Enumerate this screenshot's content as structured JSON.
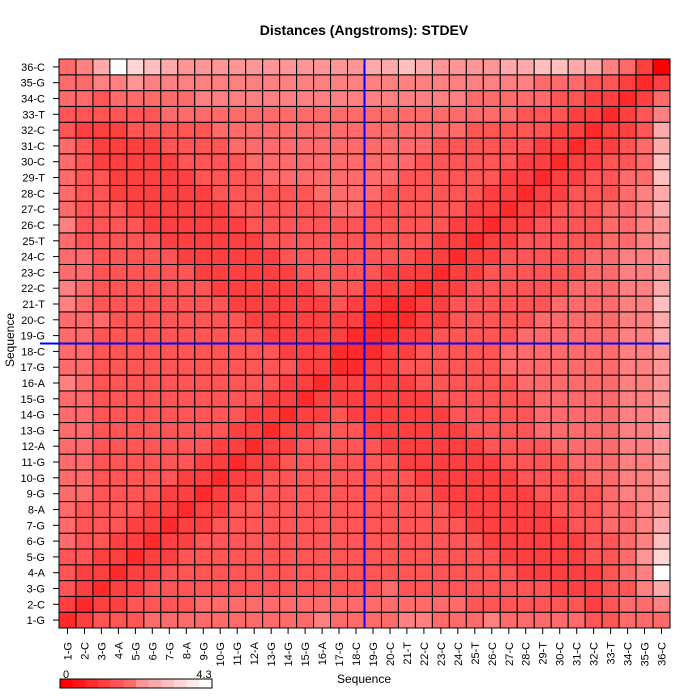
{
  "chart_data": {
    "type": "heatmap",
    "title": "Distances (Angstroms):  STDEV",
    "xlabel": "Sequence",
    "ylabel": "Sequence",
    "labels": [
      "1-G",
      "2-C",
      "3-G",
      "4-A",
      "5-G",
      "6-G",
      "7-G",
      "8-A",
      "9-G",
      "10-G",
      "11-G",
      "12-A",
      "13-G",
      "14-G",
      "15-G",
      "16-A",
      "17-G",
      "18-C",
      "19-G",
      "20-C",
      "21-T",
      "22-C",
      "23-C",
      "24-C",
      "25-T",
      "26-C",
      "27-C",
      "28-C",
      "29-T",
      "30-C",
      "31-C",
      "32-C",
      "33-T",
      "34-C",
      "35-G",
      "36-C"
    ],
    "colorbar": {
      "min": 0,
      "max": 4.3,
      "min_label": "0",
      "max_label": "4.3"
    },
    "value_encoding": "stdev in angstroms; low = saturated red, high = white",
    "crosshair": {
      "x_between": [
        "18-C",
        "19-G"
      ],
      "y_between": [
        "18-C",
        "19-G"
      ],
      "color": "#0000ff"
    },
    "grid": true,
    "colors": {
      "low": "#ff0000",
      "high": "#ffffff",
      "grid": "#000000",
      "crosshair": "#0000ff"
    },
    "values": [
      [
        0.6,
        1.2,
        1.5,
        1.5,
        1.6,
        1.7,
        1.8,
        1.8,
        1.8,
        1.9,
        1.9,
        1.9,
        1.8,
        1.8,
        1.8,
        2.1,
        1.8,
        1.8,
        1.8,
        1.9,
        2.0,
        2.0,
        1.9,
        1.9,
        1.8,
        2.0,
        1.9,
        1.8,
        1.8,
        1.7,
        1.7,
        1.5,
        1.5,
        1.8,
        1.9,
        1.8
      ],
      [
        1.2,
        0.7,
        0.9,
        1.2,
        1.4,
        1.5,
        1.6,
        1.6,
        1.7,
        1.7,
        1.7,
        1.7,
        1.7,
        1.7,
        1.7,
        1.8,
        1.7,
        1.8,
        1.8,
        1.8,
        1.8,
        1.8,
        1.7,
        1.7,
        1.6,
        1.6,
        1.6,
        1.5,
        1.5,
        1.4,
        1.3,
        1.2,
        1.3,
        1.9,
        1.7,
        2.1
      ],
      [
        1.5,
        0.9,
        0.7,
        0.9,
        1.2,
        1.4,
        1.5,
        1.5,
        1.6,
        1.6,
        1.6,
        1.6,
        1.6,
        1.6,
        1.6,
        1.6,
        1.6,
        1.6,
        1.6,
        1.7,
        1.6,
        1.6,
        1.6,
        1.5,
        1.5,
        1.4,
        1.4,
        1.3,
        1.3,
        1.2,
        1.1,
        1.1,
        1.3,
        1.6,
        2.2,
        2.7
      ],
      [
        1.5,
        1.2,
        0.9,
        0.7,
        0.9,
        1.2,
        1.4,
        1.5,
        1.5,
        1.6,
        1.6,
        1.6,
        1.6,
        1.6,
        1.6,
        1.6,
        1.6,
        1.6,
        1.6,
        1.6,
        1.6,
        1.6,
        1.5,
        1.5,
        1.4,
        1.4,
        1.3,
        1.2,
        1.1,
        1.1,
        1.0,
        1.2,
        1.4,
        1.8,
        2.3,
        4.3
      ],
      [
        1.6,
        1.4,
        1.2,
        0.9,
        0.7,
        0.9,
        1.2,
        1.4,
        1.5,
        1.5,
        1.6,
        1.6,
        1.6,
        1.6,
        1.6,
        1.6,
        1.6,
        1.6,
        1.6,
        1.6,
        1.6,
        1.5,
        1.5,
        1.4,
        1.4,
        1.3,
        1.2,
        1.1,
        1.0,
        1.0,
        1.1,
        1.3,
        1.5,
        1.9,
        2.4,
        3.6
      ],
      [
        1.7,
        1.5,
        1.4,
        1.2,
        0.9,
        0.7,
        0.9,
        1.2,
        1.4,
        1.5,
        1.5,
        1.6,
        1.6,
        1.6,
        1.6,
        1.6,
        1.6,
        1.6,
        1.6,
        1.6,
        1.5,
        1.5,
        1.4,
        1.4,
        1.3,
        1.2,
        1.1,
        1.0,
        1.0,
        1.1,
        1.2,
        1.4,
        1.6,
        1.9,
        2.3,
        3.1
      ],
      [
        1.8,
        1.6,
        1.5,
        1.4,
        1.2,
        0.9,
        0.7,
        0.9,
        1.2,
        1.4,
        1.5,
        1.5,
        1.6,
        1.6,
        1.6,
        1.6,
        1.6,
        1.6,
        1.6,
        1.5,
        1.5,
        1.4,
        1.4,
        1.3,
        1.2,
        1.1,
        1.0,
        1.0,
        1.1,
        1.2,
        1.3,
        1.5,
        1.7,
        1.9,
        2.2,
        2.8
      ],
      [
        1.8,
        1.6,
        1.5,
        1.5,
        1.4,
        1.2,
        0.9,
        0.7,
        0.9,
        1.2,
        1.4,
        1.5,
        1.5,
        1.6,
        1.6,
        1.6,
        1.6,
        1.6,
        1.5,
        1.5,
        1.4,
        1.4,
        1.3,
        1.2,
        1.1,
        1.0,
        1.0,
        1.1,
        1.2,
        1.3,
        1.4,
        1.6,
        1.8,
        1.9,
        2.2,
        2.6
      ],
      [
        1.8,
        1.7,
        1.6,
        1.5,
        1.5,
        1.4,
        1.2,
        0.9,
        0.7,
        0.9,
        1.2,
        1.4,
        1.5,
        1.5,
        1.6,
        1.6,
        1.6,
        1.5,
        1.5,
        1.4,
        1.4,
        1.3,
        1.2,
        1.1,
        1.0,
        1.0,
        1.1,
        1.2,
        1.3,
        1.4,
        1.5,
        1.6,
        1.8,
        2.0,
        2.2,
        2.6
      ],
      [
        1.9,
        1.7,
        1.6,
        1.6,
        1.5,
        1.5,
        1.4,
        1.2,
        0.9,
        0.7,
        0.9,
        1.2,
        1.4,
        1.5,
        1.5,
        1.6,
        1.5,
        1.5,
        1.4,
        1.4,
        1.3,
        1.2,
        1.1,
        1.0,
        1.0,
        1.1,
        1.2,
        1.3,
        1.4,
        1.5,
        1.6,
        1.7,
        1.9,
        2.0,
        2.2,
        2.5
      ],
      [
        1.9,
        1.7,
        1.6,
        1.6,
        1.6,
        1.5,
        1.5,
        1.4,
        1.2,
        0.9,
        0.7,
        0.9,
        1.2,
        1.4,
        1.5,
        1.5,
        1.5,
        1.4,
        1.4,
        1.3,
        1.2,
        1.1,
        1.0,
        1.0,
        1.1,
        1.2,
        1.3,
        1.4,
        1.5,
        1.6,
        1.7,
        1.8,
        1.9,
        2.0,
        2.2,
        2.5
      ],
      [
        1.9,
        1.7,
        1.6,
        1.6,
        1.6,
        1.6,
        1.5,
        1.5,
        1.4,
        1.2,
        0.9,
        0.7,
        0.9,
        1.2,
        1.4,
        1.5,
        1.4,
        1.4,
        1.3,
        1.2,
        1.1,
        1.0,
        1.0,
        1.1,
        1.2,
        1.3,
        1.4,
        1.5,
        1.6,
        1.7,
        1.8,
        1.8,
        1.9,
        2.0,
        2.2,
        2.5
      ],
      [
        1.8,
        1.7,
        1.6,
        1.6,
        1.6,
        1.6,
        1.6,
        1.5,
        1.5,
        1.4,
        1.2,
        0.9,
        0.7,
        0.9,
        1.2,
        1.4,
        1.4,
        1.3,
        1.2,
        1.1,
        1.0,
        1.0,
        1.1,
        1.2,
        1.3,
        1.4,
        1.5,
        1.6,
        1.7,
        1.7,
        1.8,
        1.8,
        1.9,
        2.0,
        2.1,
        2.4
      ],
      [
        1.8,
        1.7,
        1.6,
        1.6,
        1.6,
        1.6,
        1.6,
        1.6,
        1.5,
        1.5,
        1.4,
        1.2,
        0.9,
        0.7,
        0.9,
        1.2,
        1.3,
        1.2,
        1.1,
        1.0,
        1.0,
        1.1,
        1.2,
        1.3,
        1.4,
        1.5,
        1.6,
        1.6,
        1.7,
        1.7,
        1.8,
        1.8,
        1.9,
        2.0,
        2.1,
        2.4
      ],
      [
        1.8,
        1.7,
        1.6,
        1.6,
        1.6,
        1.6,
        1.6,
        1.6,
        1.6,
        1.5,
        1.5,
        1.4,
        1.2,
        0.9,
        0.7,
        0.9,
        1.2,
        1.1,
        1.0,
        1.0,
        1.1,
        1.2,
        1.3,
        1.4,
        1.5,
        1.5,
        1.6,
        1.6,
        1.7,
        1.7,
        1.8,
        1.8,
        1.9,
        2.0,
        2.1,
        2.4
      ],
      [
        2.1,
        1.8,
        1.6,
        1.6,
        1.6,
        1.6,
        1.6,
        1.6,
        1.6,
        1.6,
        1.5,
        1.5,
        1.4,
        1.2,
        0.9,
        0.7,
        0.9,
        1.0,
        1.0,
        1.1,
        1.2,
        1.3,
        1.4,
        1.5,
        1.5,
        1.6,
        1.6,
        1.7,
        1.7,
        1.8,
        1.8,
        1.8,
        1.9,
        2.0,
        2.1,
        2.4
      ],
      [
        1.8,
        1.7,
        1.6,
        1.6,
        1.6,
        1.6,
        1.6,
        1.6,
        1.6,
        1.5,
        1.5,
        1.4,
        1.4,
        1.3,
        1.2,
        0.9,
        0.7,
        0.8,
        1.0,
        1.2,
        1.3,
        1.4,
        1.5,
        1.5,
        1.6,
        1.6,
        1.7,
        1.7,
        1.7,
        1.8,
        1.8,
        1.8,
        1.9,
        2.0,
        2.1,
        2.4
      ],
      [
        1.8,
        1.8,
        1.6,
        1.6,
        1.6,
        1.6,
        1.6,
        1.6,
        1.5,
        1.5,
        1.4,
        1.4,
        1.3,
        1.2,
        1.1,
        1.0,
        0.8,
        0.6,
        0.8,
        1.0,
        1.2,
        1.4,
        1.5,
        1.5,
        1.6,
        1.6,
        1.7,
        1.7,
        1.7,
        1.8,
        1.8,
        1.8,
        1.9,
        2.0,
        2.1,
        2.4
      ],
      [
        1.8,
        1.8,
        1.6,
        1.6,
        1.6,
        1.6,
        1.6,
        1.5,
        1.5,
        1.4,
        1.4,
        1.3,
        1.2,
        1.1,
        1.0,
        1.0,
        1.0,
        0.8,
        0.6,
        0.8,
        1.0,
        1.2,
        1.4,
        1.5,
        1.5,
        1.6,
        1.6,
        1.7,
        1.7,
        1.7,
        1.8,
        1.8,
        1.9,
        2.0,
        2.1,
        2.7
      ],
      [
        1.9,
        1.8,
        1.7,
        1.6,
        1.6,
        1.6,
        1.5,
        1.5,
        1.4,
        1.4,
        1.3,
        1.2,
        1.1,
        1.0,
        1.0,
        1.1,
        1.2,
        1.0,
        0.8,
        0.6,
        0.8,
        1.0,
        1.2,
        1.4,
        1.5,
        1.5,
        1.6,
        1.6,
        1.7,
        1.7,
        1.8,
        1.8,
        1.9,
        2.0,
        2.1,
        3.0
      ],
      [
        2.0,
        1.8,
        1.6,
        1.6,
        1.6,
        1.5,
        1.5,
        1.4,
        1.4,
        1.3,
        1.2,
        1.1,
        1.0,
        1.0,
        1.1,
        1.2,
        1.3,
        1.2,
        1.0,
        0.8,
        0.7,
        0.9,
        1.1,
        1.3,
        1.4,
        1.5,
        1.5,
        1.6,
        1.6,
        1.7,
        1.7,
        1.8,
        1.9,
        2.0,
        2.1,
        3.1
      ],
      [
        2.0,
        1.8,
        1.6,
        1.6,
        1.5,
        1.5,
        1.4,
        1.4,
        1.3,
        1.2,
        1.1,
        1.0,
        1.0,
        1.1,
        1.2,
        1.3,
        1.4,
        1.4,
        1.2,
        1.0,
        0.9,
        0.7,
        0.9,
        1.1,
        1.3,
        1.4,
        1.5,
        1.5,
        1.6,
        1.6,
        1.7,
        1.8,
        1.9,
        2.0,
        2.1,
        2.8
      ],
      [
        1.9,
        1.7,
        1.6,
        1.5,
        1.5,
        1.4,
        1.4,
        1.3,
        1.2,
        1.1,
        1.0,
        1.0,
        1.1,
        1.2,
        1.3,
        1.4,
        1.5,
        1.5,
        1.4,
        1.2,
        1.1,
        0.9,
        0.7,
        0.9,
        1.1,
        1.3,
        1.4,
        1.5,
        1.5,
        1.6,
        1.6,
        1.7,
        1.9,
        2.0,
        2.1,
        2.6
      ],
      [
        1.9,
        1.7,
        1.5,
        1.5,
        1.4,
        1.4,
        1.3,
        1.2,
        1.1,
        1.0,
        1.0,
        1.1,
        1.2,
        1.3,
        1.4,
        1.5,
        1.5,
        1.5,
        1.5,
        1.4,
        1.3,
        1.1,
        0.9,
        0.7,
        0.9,
        1.1,
        1.3,
        1.4,
        1.5,
        1.5,
        1.6,
        1.7,
        1.8,
        2.0,
        2.1,
        2.5
      ],
      [
        1.8,
        1.6,
        1.5,
        1.4,
        1.4,
        1.3,
        1.2,
        1.1,
        1.0,
        1.0,
        1.1,
        1.2,
        1.3,
        1.4,
        1.5,
        1.5,
        1.6,
        1.6,
        1.5,
        1.5,
        1.4,
        1.3,
        1.1,
        0.9,
        0.7,
        0.9,
        1.1,
        1.3,
        1.4,
        1.5,
        1.6,
        1.6,
        1.8,
        1.9,
        2.1,
        2.5
      ],
      [
        2.0,
        1.6,
        1.4,
        1.4,
        1.3,
        1.2,
        1.1,
        1.0,
        1.0,
        1.1,
        1.2,
        1.3,
        1.4,
        1.5,
        1.5,
        1.6,
        1.6,
        1.6,
        1.6,
        1.5,
        1.5,
        1.4,
        1.3,
        1.1,
        0.9,
        0.7,
        0.9,
        1.1,
        1.3,
        1.4,
        1.5,
        1.6,
        1.7,
        1.9,
        2.0,
        2.6
      ],
      [
        1.9,
        1.6,
        1.4,
        1.3,
        1.2,
        1.1,
        1.0,
        1.0,
        1.1,
        1.2,
        1.3,
        1.4,
        1.5,
        1.6,
        1.6,
        1.6,
        1.7,
        1.7,
        1.6,
        1.6,
        1.5,
        1.5,
        1.4,
        1.3,
        1.1,
        0.9,
        0.7,
        0.9,
        1.1,
        1.3,
        1.4,
        1.5,
        1.7,
        1.8,
        2.0,
        2.9
      ],
      [
        1.8,
        1.5,
        1.3,
        1.2,
        1.1,
        1.0,
        1.0,
        1.1,
        1.2,
        1.3,
        1.4,
        1.5,
        1.6,
        1.6,
        1.6,
        1.7,
        1.7,
        1.7,
        1.7,
        1.6,
        1.6,
        1.5,
        1.5,
        1.4,
        1.3,
        1.1,
        0.9,
        0.7,
        0.9,
        1.1,
        1.3,
        1.4,
        1.6,
        1.8,
        2.0,
        3.0
      ],
      [
        1.8,
        1.5,
        1.3,
        1.1,
        1.0,
        1.0,
        1.1,
        1.2,
        1.3,
        1.4,
        1.5,
        1.6,
        1.7,
        1.7,
        1.7,
        1.7,
        1.7,
        1.7,
        1.7,
        1.7,
        1.6,
        1.6,
        1.5,
        1.5,
        1.4,
        1.3,
        1.1,
        0.9,
        0.7,
        0.9,
        1.1,
        1.3,
        1.5,
        1.7,
        1.9,
        3.2
      ],
      [
        1.7,
        1.4,
        1.2,
        1.1,
        1.0,
        1.1,
        1.2,
        1.3,
        1.4,
        1.5,
        1.6,
        1.7,
        1.7,
        1.7,
        1.7,
        1.8,
        1.8,
        1.8,
        1.7,
        1.7,
        1.7,
        1.6,
        1.6,
        1.5,
        1.5,
        1.4,
        1.3,
        1.1,
        0.9,
        0.7,
        0.9,
        1.1,
        1.3,
        1.6,
        1.9,
        3.1
      ],
      [
        1.7,
        1.3,
        1.1,
        1.0,
        1.1,
        1.2,
        1.3,
        1.4,
        1.5,
        1.6,
        1.7,
        1.8,
        1.8,
        1.8,
        1.8,
        1.8,
        1.8,
        1.8,
        1.8,
        1.8,
        1.7,
        1.7,
        1.6,
        1.6,
        1.6,
        1.5,
        1.4,
        1.3,
        1.1,
        0.9,
        0.7,
        0.9,
        1.1,
        1.4,
        1.8,
        2.9
      ],
      [
        1.5,
        1.2,
        1.1,
        1.2,
        1.3,
        1.4,
        1.5,
        1.6,
        1.6,
        1.7,
        1.8,
        1.8,
        1.8,
        1.8,
        1.8,
        1.8,
        1.8,
        1.8,
        1.8,
        1.8,
        1.8,
        1.8,
        1.7,
        1.7,
        1.6,
        1.6,
        1.5,
        1.4,
        1.3,
        1.1,
        0.9,
        0.7,
        0.9,
        1.2,
        1.6,
        2.7
      ],
      [
        1.5,
        1.3,
        1.3,
        1.4,
        1.5,
        1.6,
        1.7,
        1.8,
        1.8,
        1.9,
        1.9,
        1.9,
        1.9,
        1.9,
        1.9,
        1.9,
        1.9,
        1.9,
        1.9,
        1.9,
        1.9,
        1.9,
        1.9,
        1.8,
        1.8,
        1.7,
        1.7,
        1.6,
        1.5,
        1.3,
        1.1,
        0.9,
        0.7,
        0.9,
        1.3,
        2.3
      ],
      [
        1.8,
        1.9,
        1.6,
        1.8,
        1.9,
        1.9,
        1.9,
        1.9,
        2.0,
        2.0,
        2.0,
        2.0,
        2.0,
        2.0,
        2.0,
        2.0,
        2.0,
        2.0,
        2.0,
        2.0,
        2.0,
        2.0,
        2.0,
        2.0,
        1.9,
        1.9,
        1.8,
        1.8,
        1.7,
        1.6,
        1.4,
        1.2,
        0.9,
        0.7,
        0.9,
        1.8
      ],
      [
        1.9,
        1.7,
        2.2,
        2.3,
        2.4,
        2.3,
        2.2,
        2.2,
        2.2,
        2.2,
        2.2,
        2.2,
        2.1,
        2.1,
        2.1,
        2.1,
        2.1,
        2.1,
        2.1,
        2.1,
        2.1,
        2.1,
        2.1,
        2.1,
        2.1,
        2.0,
        2.0,
        2.0,
        1.9,
        1.9,
        1.8,
        1.6,
        1.3,
        0.9,
        0.7,
        1.2
      ],
      [
        1.8,
        2.1,
        2.7,
        4.3,
        3.6,
        3.1,
        2.8,
        2.6,
        2.6,
        2.5,
        2.5,
        2.5,
        2.4,
        2.4,
        2.4,
        2.4,
        2.4,
        2.4,
        2.7,
        3.0,
        3.1,
        2.8,
        2.6,
        2.5,
        2.5,
        2.6,
        2.9,
        3.0,
        3.2,
        3.1,
        2.9,
        2.7,
        2.3,
        1.8,
        1.2,
        0.1
      ]
    ]
  }
}
